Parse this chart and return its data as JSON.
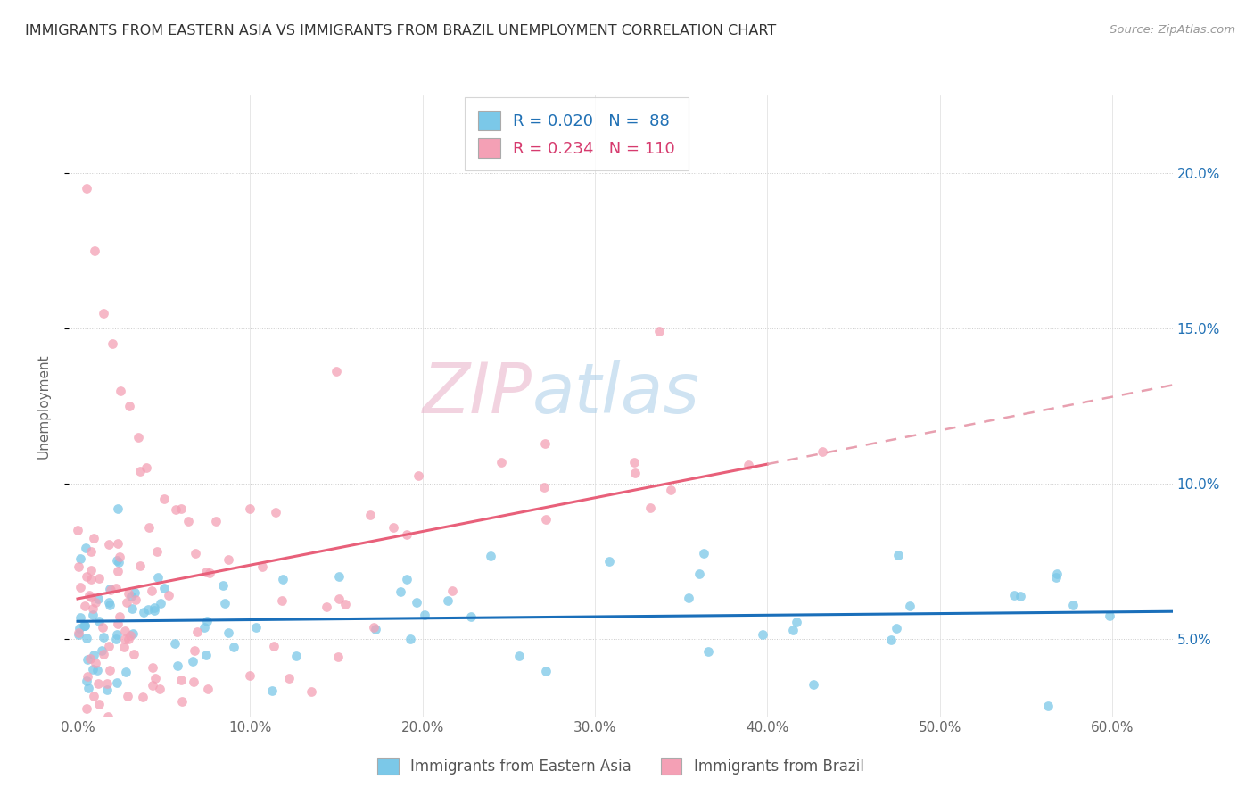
{
  "title": "IMMIGRANTS FROM EASTERN ASIA VS IMMIGRANTS FROM BRAZIL UNEMPLOYMENT CORRELATION CHART",
  "source": "Source: ZipAtlas.com",
  "x_tick_vals": [
    0.0,
    0.1,
    0.2,
    0.3,
    0.4,
    0.5,
    0.6
  ],
  "x_tick_labels": [
    "0.0%",
    "10.0%",
    "20.0%",
    "30.0%",
    "40.0%",
    "50.0%",
    "60.0%"
  ],
  "y_tick_vals": [
    0.05,
    0.1,
    0.15,
    0.2
  ],
  "y_tick_labels": [
    "5.0%",
    "10.0%",
    "15.0%",
    "20.0%"
  ],
  "ylim": [
    0.025,
    0.225
  ],
  "xlim": [
    -0.005,
    0.635
  ],
  "watermark_zip": "ZIP",
  "watermark_atlas": "atlas",
  "legend_ea_R": "0.020",
  "legend_ea_N": "88",
  "legend_br_R": "0.234",
  "legend_br_N": "110",
  "ea_color": "#7bc8e8",
  "br_color": "#f4a0b5",
  "ea_trend_color": "#1a6fba",
  "br_trend_color": "#e8607a",
  "br_trend_dashed_color": "#e8a0b0",
  "ylabel": "Unemployment",
  "bottom_legend_ea": "Immigrants from Eastern Asia",
  "bottom_legend_br": "Immigrants from Brazil"
}
